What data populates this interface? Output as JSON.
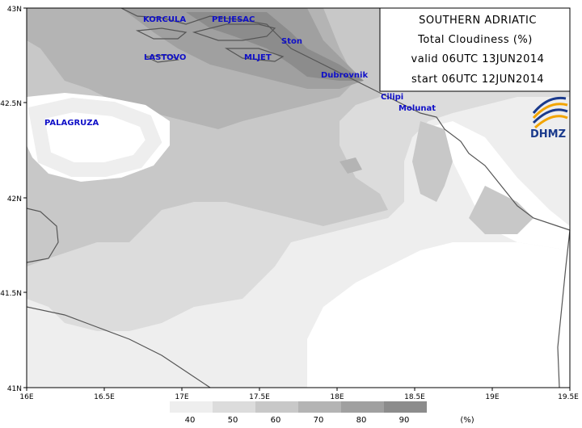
{
  "title_box": {
    "line1": "SOUTHERN ADRIATIC",
    "line2": "Total Cloudiness (%)",
    "line3": "valid 06UTC 13JUN2014",
    "line4": "start 06UTC 12JUN2014"
  },
  "logo": {
    "text": "DHMZ"
  },
  "axes": {
    "lon_ticks": [
      "16E",
      "16.5E",
      "17E",
      "17.5E",
      "18E",
      "18.5E",
      "19E",
      "19.5E"
    ],
    "lat_ticks": [
      "43N",
      "42.5N",
      "42N",
      "41.5N",
      "41N"
    ]
  },
  "places": {
    "korcula": "KORCULA",
    "peljesac": "PELJESAC",
    "ston": "Ston",
    "lastovo": "LASTOVO",
    "mljet": "MLJET",
    "dubrovnik": "Dubrovnik",
    "cilipi": "Cilipi",
    "molunat": "Molunat",
    "palagruza": "PALAGRUZA"
  },
  "legend": {
    "labels": [
      "40",
      "50",
      "60",
      "70",
      "80",
      "90"
    ],
    "unit": "(%)",
    "colors": [
      "#eeeeee",
      "#dcdcdc",
      "#c8c8c8",
      "#b4b4b4",
      "#a0a0a0",
      "#8c8c8c"
    ]
  },
  "colors": {
    "level40": "#eeeeee",
    "level50": "#dcdcdc",
    "level60": "#c8c8c8",
    "level70": "#b4b4b4",
    "level80": "#a0a0a0",
    "level90": "#8c8c8c",
    "coast": "#555555",
    "place_label": "#1010c8"
  }
}
